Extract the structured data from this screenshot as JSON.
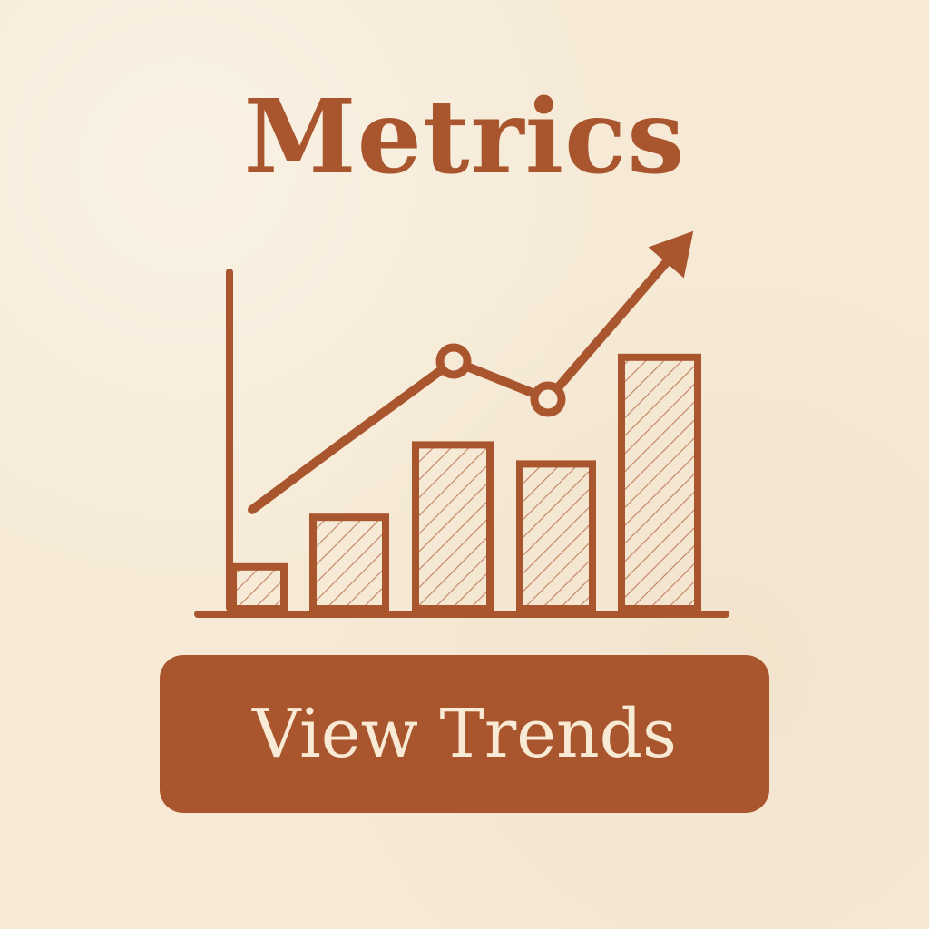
{
  "title": "Metrics",
  "button": {
    "label": "View Trends"
  },
  "icon": {
    "name": "bar-line-chart-icon",
    "bar_levels": [
      0.11,
      0.24,
      0.43,
      0.38,
      0.66
    ],
    "trend_levels": [
      0.26,
      0.42,
      0.65,
      0.55,
      0.93
    ]
  },
  "colors": {
    "background": "#f6ead6",
    "accent": "#a9562f",
    "button_text": "#f8ead4"
  }
}
